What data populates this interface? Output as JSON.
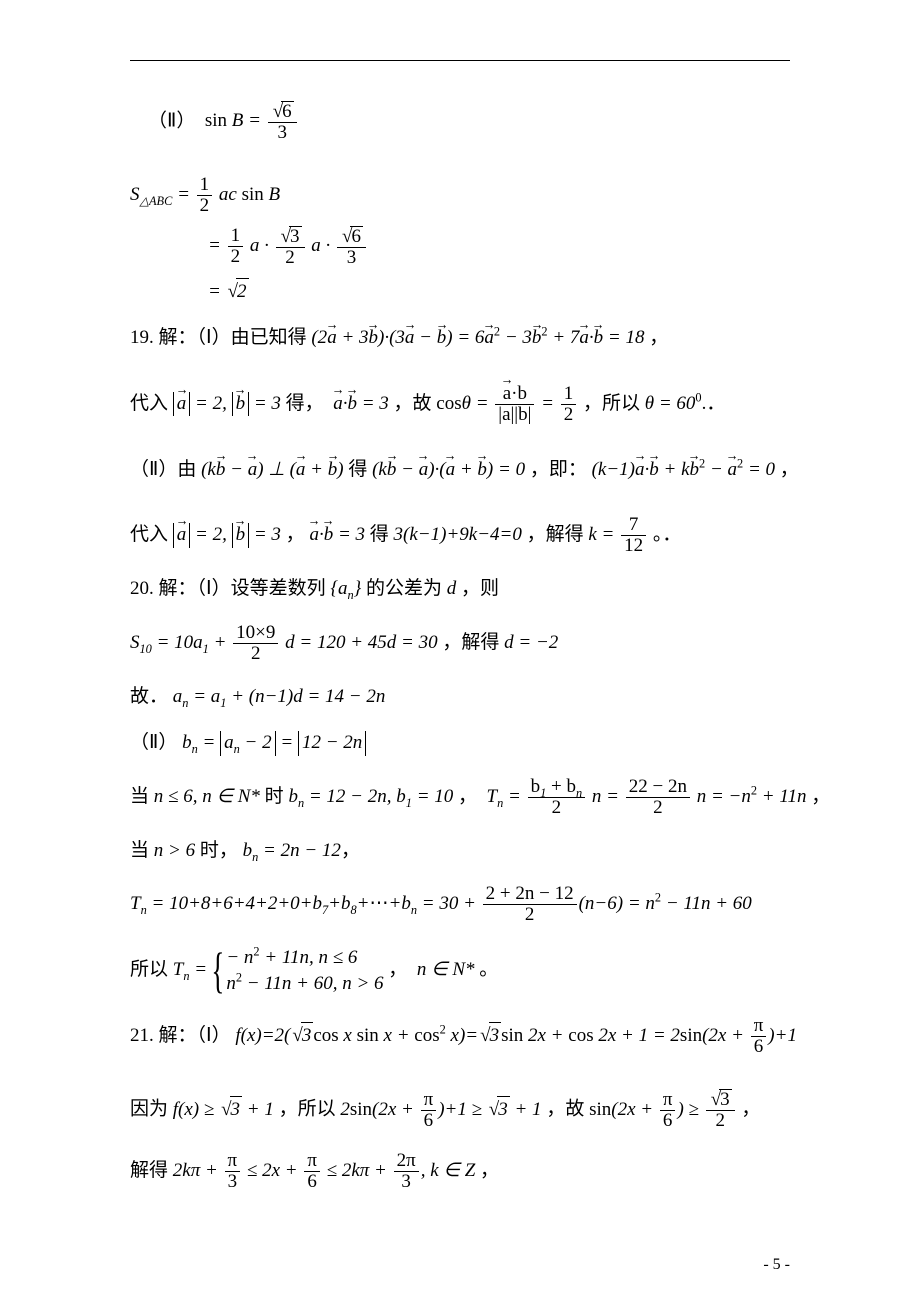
{
  "page": {
    "number": "- 5 -",
    "rule_color": "#000000",
    "text_color": "#000000",
    "bg_color": "#ffffff",
    "base_fontsize": 19
  },
  "l1": "（Ⅱ）",
  "l2": "19. 解：（Ⅰ）由已知得",
  "l3": "代入",
  "l4": "得，",
  "l5": "，故",
  "l6": "，所以",
  "l7": "（Ⅱ）由",
  "l8": "得",
  "l9": "，即：",
  "l10": "，",
  "l11": "代入",
  "l12": "，",
  "l13": "得",
  "l14": "，解得",
  "l15": "。．",
  "l16": "20. 解：（Ⅰ）设等差数列",
  "l17": "的公差为",
  "l18": "，则",
  "l19": "，解得",
  "l20": "故．",
  "l21": "（Ⅱ）",
  "l22": "当",
  "l23": "时",
  "l24": "，",
  "l25": "当",
  "l26": "时，",
  "l27": "所以",
  "l28": "，",
  "l29": "。",
  "l30": "21. 解：（Ⅰ）",
  "l31": "因为",
  "l32": "，所以",
  "l33": "，故",
  "l34": "解得",
  "m": {
    "sinB": "sin B = √6 / 3",
    "area_lhs": "S_{△ABC} = (1/2) a c sin B",
    "area_mid": "= (1/2) a · (√3/2) a · (√6/3)",
    "area_end": "= √2",
    "q19_eq": "(2a+3b)·(3a−b)=6a²−3b²+7a·b=18",
    "mag_a": "|a|=2",
    "mag_b": "|b|=3",
    "adotb": "a·b=3",
    "costheta": "cosθ = a·b / |a||b| = 1/2",
    "theta": "θ = 60⁰",
    "perp": "(kb−a)⊥(a+b)",
    "perp_eq": "(kb−a)·(a+b)=0",
    "expand": "(k−1)a·b + k b² − a² = 0",
    "lin": "3(k−1)+9k−4=0",
    "k": "k = 7/12",
    "an_seq": "{aₙ}",
    "d_var": "d",
    "S10": "S₁₀ = 10a₁ + (10×9/2) d = 120 + 45d = 30",
    "d_solve": "d = −2",
    "an": "aₙ = a₁ + (n−1)d = 14 − 2n",
    "bn_def": "bₙ = |aₙ − 2| = |12 − 2n|",
    "cond1": "n ≤ 6, n ∈ N*",
    "bn1": "bₙ = 12 − 2n, b₁ = 10",
    "Tn1": "Tₙ = (b₁+bₙ)/2 · n = (22−2n)/2 · n = −n² + 11n",
    "cond2": "n > 6",
    "bn2": "bₙ = 2n − 12",
    "Tn2": "Tₙ = 10+8+6+4+2+0+b₇+b₈+…+bₙ = 30 + (2+2n−12)/2 (n−6) = n² − 11n + 60",
    "Tn_piece_a": "−n² + 11n, n ≤ 6",
    "Tn_piece_b": "n² − 11n + 60, n > 6",
    "nN": "n ∈ N*",
    "fx": "f(x)=2(√3 cos x sin x + cos² x)=√3 sin 2x + cos 2x + 1 = 2 sin(2x+π/6)+1",
    "ineq1": "f(x) ≥ √3 + 1",
    "ineq2": "2 sin(2x+π/6)+1 ≥ √3 + 1",
    "ineq3": "sin(2x+π/6) ≥ √3/2",
    "range": "2kπ + π/3 ≤ 2x + π/6 ≤ 2kπ + 2π/3, k ∈ Z"
  }
}
